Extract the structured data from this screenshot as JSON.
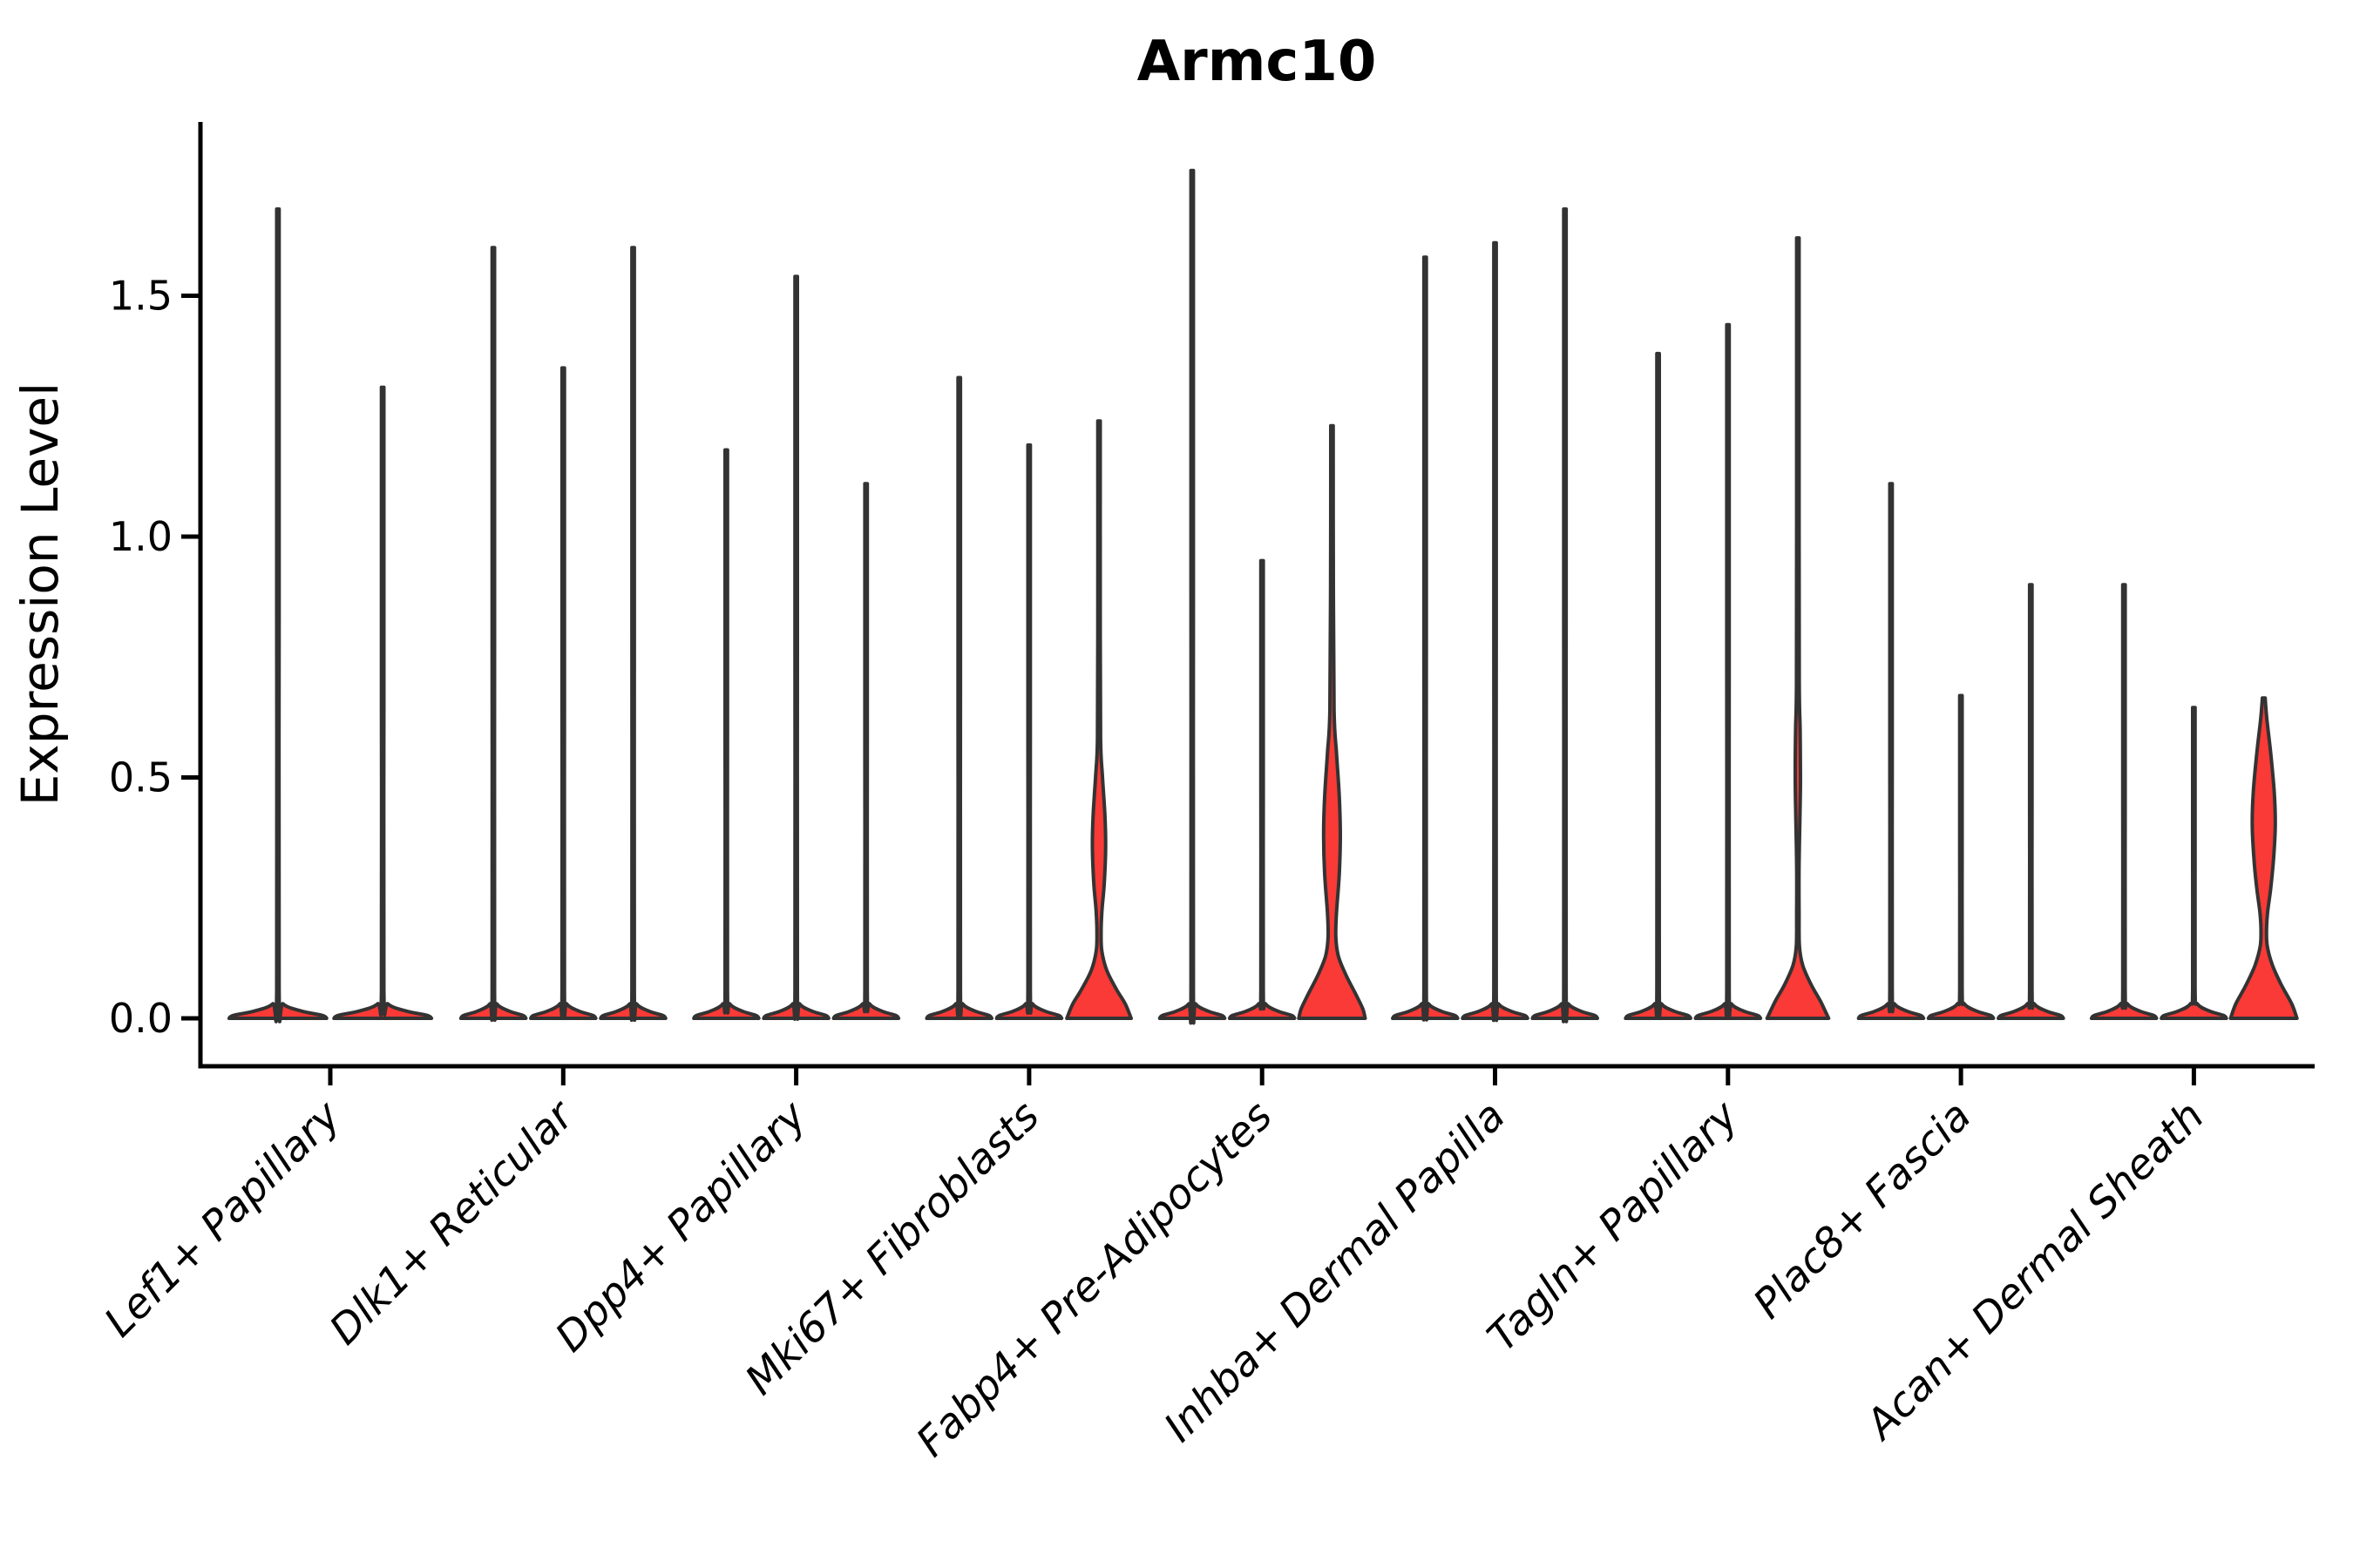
{
  "colors": {
    "violin_fill": "#f93a36",
    "violin_outline": "#333333",
    "axis_color": "#000000",
    "background": "#ffffff"
  },
  "chart_data": {
    "type": "violin",
    "title": "Armc10",
    "xlabel": "",
    "ylabel": "Expression Level",
    "ylim": [
      0,
      1.86
    ],
    "yticks": [
      0.0,
      0.5,
      1.0,
      1.5
    ],
    "ytick_labels": [
      "0.0",
      "0.5",
      "1.0",
      "1.5"
    ],
    "grid": false,
    "legend": "none",
    "categories": [
      "Lef1+ Papillary",
      "Dlk1+ Reticular",
      "Dpp4+ Papillary",
      "Mki67+ Fibroblasts",
      "Fabp4+ Pre-Adipocytes",
      "Inhba+ Dermal Papilla",
      "Tagln+ Papillary",
      "Plac8+ Fascia",
      "Acan+ Dermal Sheath"
    ],
    "groups": [
      {
        "label": "Lef1+ Papillary",
        "violins": [
          {
            "peak": 1.68,
            "shape": "spike",
            "highlighted": false
          },
          {
            "peak": 1.31,
            "shape": "spike",
            "highlighted": false
          }
        ]
      },
      {
        "label": "Dlk1+ Reticular",
        "violins": [
          {
            "peak": 1.6,
            "shape": "spike",
            "highlighted": false
          },
          {
            "peak": 1.35,
            "shape": "spike",
            "highlighted": false
          },
          {
            "peak": 1.6,
            "shape": "spike",
            "highlighted": false
          }
        ]
      },
      {
        "label": "Dpp4+ Papillary",
        "violins": [
          {
            "peak": 1.18,
            "shape": "spike",
            "highlighted": false
          },
          {
            "peak": 1.54,
            "shape": "spike",
            "highlighted": false
          },
          {
            "peak": 1.11,
            "shape": "spike",
            "highlighted": false
          }
        ]
      },
      {
        "label": "Mki67+ Fibroblasts",
        "violins": [
          {
            "peak": 1.33,
            "shape": "spike",
            "highlighted": false
          },
          {
            "peak": 1.19,
            "shape": "spike",
            "highlighted": false
          },
          {
            "peak": 1.24,
            "shape": "body",
            "highlighted": true,
            "profile": [
              [
                1.24,
                0.03
              ],
              [
                0.8,
                0.035
              ],
              [
                0.58,
                0.045
              ],
              [
                0.5,
                0.1
              ],
              [
                0.42,
                0.17
              ],
              [
                0.355,
                0.19
              ],
              [
                0.28,
                0.15
              ],
              [
                0.225,
                0.085
              ],
              [
                0.18,
                0.06
              ],
              [
                0.14,
                0.08
              ],
              [
                0.1,
                0.22
              ],
              [
                0.06,
                0.5
              ],
              [
                0.03,
                0.75
              ],
              [
                0,
                0.92
              ]
            ]
          }
        ]
      },
      {
        "label": "Fabp4+ Pre-Adipocytes",
        "violins": [
          {
            "peak": 1.76,
            "shape": "spike",
            "highlighted": false
          },
          {
            "peak": 0.95,
            "shape": "spike",
            "highlighted": false
          },
          {
            "peak": 1.23,
            "shape": "body",
            "highlighted": true,
            "profile": [
              [
                1.23,
                0.03
              ],
              [
                0.9,
                0.04
              ],
              [
                0.64,
                0.06
              ],
              [
                0.55,
                0.13
              ],
              [
                0.46,
                0.21
              ],
              [
                0.38,
                0.24
              ],
              [
                0.3,
                0.21
              ],
              [
                0.22,
                0.13
              ],
              [
                0.17,
                0.11
              ],
              [
                0.13,
                0.18
              ],
              [
                0.09,
                0.4
              ],
              [
                0.05,
                0.68
              ],
              [
                0.02,
                0.88
              ],
              [
                0,
                0.95
              ]
            ]
          }
        ]
      },
      {
        "label": "Inhba+ Dermal Papilla",
        "violins": [
          {
            "peak": 1.58,
            "shape": "spike",
            "highlighted": false
          },
          {
            "peak": 1.61,
            "shape": "spike",
            "highlighted": false
          },
          {
            "peak": 1.68,
            "shape": "spike",
            "highlighted": false
          }
        ]
      },
      {
        "label": "Tagln+ Papillary",
        "violins": [
          {
            "peak": 1.38,
            "shape": "spike",
            "highlighted": false
          },
          {
            "peak": 1.44,
            "shape": "spike",
            "highlighted": false
          },
          {
            "peak": 1.62,
            "shape": "body",
            "highlighted": true,
            "profile": [
              [
                1.62,
                0.025
              ],
              [
                1.1,
                0.03
              ],
              [
                0.7,
                0.04
              ],
              [
                0.6,
                0.065
              ],
              [
                0.5,
                0.075
              ],
              [
                0.42,
                0.06
              ],
              [
                0.32,
                0.035
              ],
              [
                0.22,
                0.03
              ],
              [
                0.15,
                0.045
              ],
              [
                0.11,
                0.14
              ],
              [
                0.07,
                0.38
              ],
              [
                0.035,
                0.65
              ],
              [
                0,
                0.88
              ]
            ]
          }
        ]
      },
      {
        "label": "Plac8+ Fascia",
        "violins": [
          {
            "peak": 1.11,
            "shape": "spike",
            "highlighted": false
          },
          {
            "peak": 0.67,
            "shape": "spike",
            "highlighted": false
          },
          {
            "peak": 0.9,
            "shape": "spike",
            "highlighted": false
          }
        ]
      },
      {
        "label": "Acan+ Dermal Sheath",
        "violins": [
          {
            "peak": 0.9,
            "shape": "spike",
            "highlighted": false
          },
          {
            "peak": 0.645,
            "shape": "spike",
            "highlighted": false
          },
          {
            "peak": 0.665,
            "shape": "body",
            "highlighted": true,
            "profile": [
              [
                0.665,
                0.04
              ],
              [
                0.62,
                0.09
              ],
              [
                0.55,
                0.2
              ],
              [
                0.47,
                0.3
              ],
              [
                0.4,
                0.33
              ],
              [
                0.33,
                0.28
              ],
              [
                0.27,
                0.2
              ],
              [
                0.22,
                0.11
              ],
              [
                0.185,
                0.08
              ],
              [
                0.15,
                0.1
              ],
              [
                0.11,
                0.25
              ],
              [
                0.07,
                0.5
              ],
              [
                0.03,
                0.8
              ],
              [
                0,
                0.95
              ]
            ]
          }
        ]
      }
    ]
  }
}
